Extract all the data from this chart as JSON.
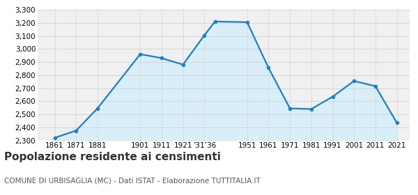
{
  "years": [
    1861,
    1871,
    1881,
    1901,
    1911,
    1921,
    1931,
    1936,
    1951,
    1961,
    1971,
    1981,
    1991,
    2001,
    2011,
    2021
  ],
  "population": [
    2320,
    2375,
    2545,
    2960,
    2930,
    2880,
    3105,
    3210,
    3205,
    2855,
    2545,
    2540,
    2635,
    2755,
    2715,
    2435
  ],
  "line_color": "#1b7fc4",
  "fill_color": "#d9eef8",
  "marker_color": "#1b7fc4",
  "grid_color": "#d0d0d0",
  "background_color": "#f0f0f0",
  "ylim": [
    2300,
    3300
  ],
  "yticks": [
    2300,
    2400,
    2500,
    2600,
    2700,
    2800,
    2900,
    3000,
    3100,
    3200,
    3300
  ],
  "x_tick_positions": [
    1861,
    1871,
    1881,
    1901,
    1911,
    1921,
    1931,
    1951,
    1961,
    1971,
    1981,
    1991,
    2001,
    2011,
    2021
  ],
  "x_tick_labels": [
    "1861",
    "1871",
    "1881",
    "1901",
    "1911",
    "1921",
    "’31’36",
    "1951",
    "1961",
    "1971",
    "1981",
    "1991",
    "2001",
    "2011",
    "2021"
  ],
  "xlim": [
    1853,
    2027
  ],
  "title": "Popolazione residente ai censimenti",
  "subtitle": "COMUNE DI URBISAGLIA (MC) - Dati ISTAT - Elaborazione TUTTITALIA.IT",
  "title_fontsize": 11,
  "subtitle_fontsize": 7.5,
  "tick_fontsize": 7.5,
  "ytick_fontsize": 7.5
}
